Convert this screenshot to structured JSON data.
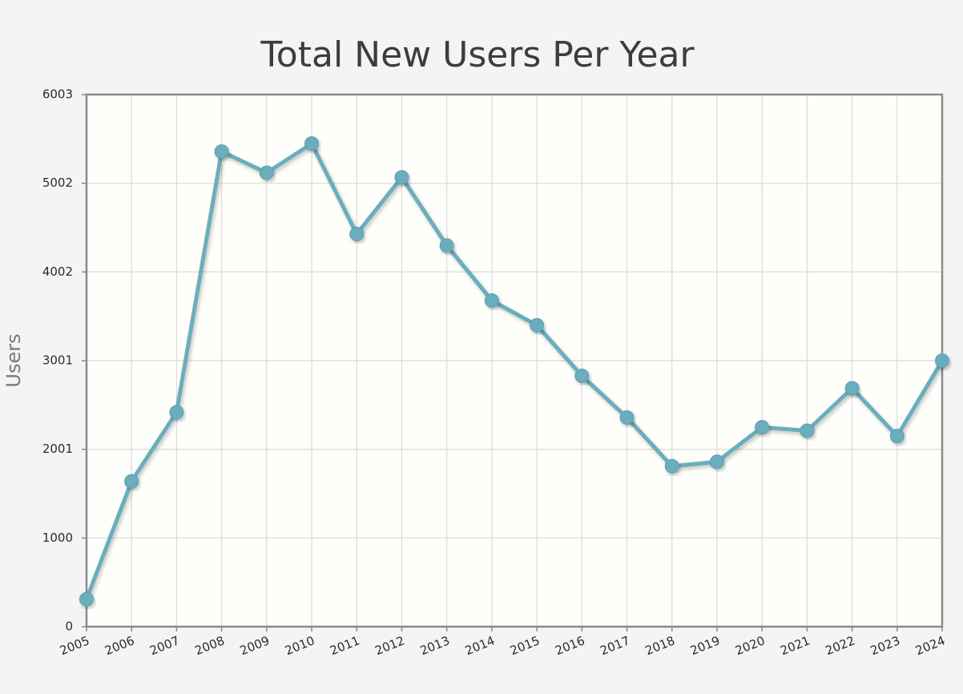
{
  "chart_data": {
    "type": "line",
    "title": "Total New Users Per Year",
    "xlabel": "",
    "ylabel": "Users",
    "categories": [
      "2005",
      "2006",
      "2007",
      "2008",
      "2009",
      "2010",
      "2011",
      "2012",
      "2013",
      "2014",
      "2015",
      "2016",
      "2017",
      "2018",
      "2019",
      "2020",
      "2021",
      "2022",
      "2023",
      "2024"
    ],
    "y_ticks": [
      "0",
      "1000",
      "2001",
      "3001",
      "4002",
      "5002",
      "6003"
    ],
    "ylim": [
      0,
      6003
    ],
    "grid": true,
    "series": [
      {
        "name": "Users",
        "values": [
          310,
          1640,
          2420,
          5360,
          5120,
          5450,
          4430,
          5070,
          4300,
          3680,
          3400,
          2830,
          2360,
          1810,
          1860,
          2250,
          2210,
          2690,
          2150,
          3000
        ]
      }
    ],
    "colors": {
      "line": "#6aaebd",
      "marker": "#6aaebd",
      "plot_bg": "#fefefa",
      "grid": "#dcdcdc",
      "frame": "#8a8a8a"
    }
  }
}
